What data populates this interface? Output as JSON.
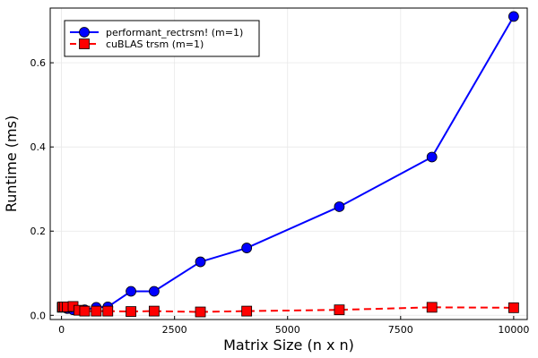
{
  "chart_data": {
    "type": "line",
    "xlabel": "Matrix Size (n x n)",
    "ylabel": "Runtime (ms)",
    "xlim": [
      -250,
      10300
    ],
    "ylim": [
      -0.01,
      0.73
    ],
    "xticks": [
      0,
      2500,
      5000,
      7500,
      10000
    ],
    "yticks": [
      0.0,
      0.2,
      0.4,
      0.6
    ],
    "xtick_labels": [
      "0",
      "2500",
      "5000",
      "7500",
      "10000"
    ],
    "ytick_labels": [
      "0.0",
      "0.2",
      "0.4",
      "0.6"
    ],
    "grid": true,
    "legend_position": "top-left",
    "series": [
      {
        "name": "performant_rectrsm! (m=1)",
        "color": "#0000ff",
        "marker": "circle",
        "line_style": "solid",
        "x": [
          16,
          32,
          64,
          128,
          256,
          512,
          768,
          1024,
          1536,
          2048,
          3072,
          4096,
          6144,
          8192,
          10000
        ],
        "y": [
          0.02,
          0.02,
          0.02,
          0.016,
          0.013,
          0.013,
          0.019,
          0.02,
          0.057,
          0.057,
          0.127,
          0.16,
          0.258,
          0.376,
          0.71
        ]
      },
      {
        "name": "cuBLAS trsm (m=1)",
        "color": "#ff0000",
        "marker": "square",
        "line_style": "dashed",
        "x": [
          16,
          32,
          64,
          128,
          256,
          384,
          512,
          768,
          1024,
          1536,
          2048,
          3072,
          4096,
          6144,
          8192,
          10000
        ],
        "y": [
          0.019,
          0.02,
          0.02,
          0.02,
          0.021,
          0.012,
          0.01,
          0.01,
          0.01,
          0.009,
          0.01,
          0.008,
          0.01,
          0.013,
          0.019,
          0.018
        ]
      }
    ]
  }
}
